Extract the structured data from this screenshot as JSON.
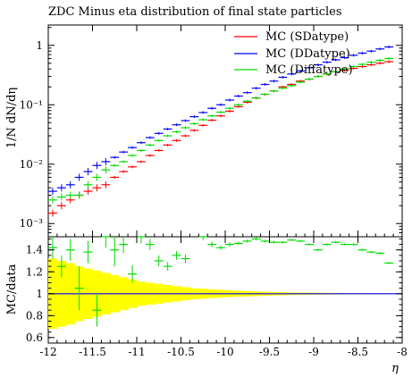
{
  "chart_data": {
    "type": "line",
    "title": "ZDC Minus eta distribution of final state particles",
    "xlabel": "η",
    "ylabel": "1/N dN/dη",
    "xlim": [
      -12,
      -8
    ],
    "x_ticks": [
      -12,
      -11.5,
      -11,
      -10.5,
      -10,
      -9.5,
      -9,
      -8.5,
      -8
    ],
    "x_tick_labels": [
      "-12",
      "-11.5",
      "-11",
      "-10.5",
      "-10",
      "-9.5",
      "-9",
      "-8.5",
      "-8"
    ],
    "yscale": "log",
    "ylim": [
      0.0006,
      2.2
    ],
    "y_ticks": [
      0.001,
      0.01,
      0.1,
      1
    ],
    "y_tick_labels": [
      "10⁻³",
      "10⁻²",
      "10⁻¹",
      "1"
    ],
    "legend_position": "top-right",
    "series": [
      {
        "name": "MC (SDatype)",
        "color": "#ff0000",
        "x": [
          -11.95,
          -11.85,
          -11.75,
          -11.65,
          -11.55,
          -11.45,
          -11.35,
          -11.25,
          -11.15,
          -11.05,
          -10.95,
          -10.85,
          -10.75,
          -10.65,
          -10.55,
          -10.45,
          -10.35,
          -10.25,
          -10.15,
          -10.05,
          -9.95,
          -9.85,
          -9.75,
          -9.65,
          -9.55,
          -9.45,
          -9.35,
          -9.25,
          -9.15,
          -9.05,
          -8.95,
          -8.85,
          -8.75,
          -8.65,
          -8.55,
          -8.45,
          -8.35,
          -8.25,
          -8.15
        ],
        "values": [
          0.0015,
          0.002,
          0.0025,
          0.003,
          0.0035,
          0.004,
          0.0045,
          0.006,
          0.0075,
          0.009,
          0.011,
          0.014,
          0.017,
          0.021,
          0.025,
          0.03,
          0.037,
          0.045,
          0.055,
          0.065,
          0.078,
          0.093,
          0.11,
          0.13,
          0.15,
          0.17,
          0.2,
          0.22,
          0.25,
          0.27,
          0.3,
          0.33,
          0.36,
          0.38,
          0.41,
          0.44,
          0.47,
          0.5,
          0.53
        ]
      },
      {
        "name": "MC (DDatype)",
        "color": "#0000ff",
        "x": [
          -11.95,
          -11.85,
          -11.75,
          -11.65,
          -11.55,
          -11.45,
          -11.35,
          -11.25,
          -11.15,
          -11.05,
          -10.95,
          -10.85,
          -10.75,
          -10.65,
          -10.55,
          -10.45,
          -10.35,
          -10.25,
          -10.15,
          -10.05,
          -9.95,
          -9.85,
          -9.75,
          -9.65,
          -9.55,
          -9.45,
          -9.35,
          -9.25,
          -9.15,
          -9.05,
          -8.95,
          -8.85,
          -8.75,
          -8.65,
          -8.55,
          -8.45,
          -8.35,
          -8.25,
          -8.15
        ],
        "values": [
          0.0035,
          0.004,
          0.0045,
          0.006,
          0.0075,
          0.0095,
          0.011,
          0.013,
          0.016,
          0.019,
          0.023,
          0.028,
          0.033,
          0.039,
          0.046,
          0.054,
          0.063,
          0.074,
          0.087,
          0.1,
          0.12,
          0.14,
          0.16,
          0.19,
          0.22,
          0.25,
          0.29,
          0.33,
          0.37,
          0.42,
          0.47,
          0.52,
          0.57,
          0.62,
          0.68,
          0.74,
          0.8,
          0.87,
          0.94
        ]
      },
      {
        "name": "MC (Diffatype)",
        "color": "#00dd00",
        "x": [
          -11.95,
          -11.85,
          -11.75,
          -11.65,
          -11.55,
          -11.45,
          -11.35,
          -11.25,
          -11.15,
          -11.05,
          -10.95,
          -10.85,
          -10.75,
          -10.65,
          -10.55,
          -10.45,
          -10.35,
          -10.25,
          -10.15,
          -10.05,
          -9.95,
          -9.85,
          -9.75,
          -9.65,
          -9.55,
          -9.45,
          -9.35,
          -9.25,
          -9.15,
          -9.05,
          -8.95,
          -8.85,
          -8.75,
          -8.65,
          -8.55,
          -8.45,
          -8.35,
          -8.25,
          -8.15
        ],
        "values": [
          0.0025,
          0.0028,
          0.003,
          0.003,
          0.0045,
          0.006,
          0.008,
          0.0095,
          0.011,
          0.014,
          0.017,
          0.021,
          0.025,
          0.03,
          0.035,
          0.041,
          0.048,
          0.056,
          0.065,
          0.075,
          0.087,
          0.1,
          0.115,
          0.13,
          0.15,
          0.17,
          0.19,
          0.21,
          0.24,
          0.27,
          0.3,
          0.33,
          0.36,
          0.4,
          0.44,
          0.48,
          0.52,
          0.56,
          0.6
        ]
      }
    ],
    "ratio_panel": {
      "ylabel": "MC/data",
      "ylim": [
        0.55,
        1.52
      ],
      "y_ticks": [
        0.6,
        0.8,
        1,
        1.2,
        1.4
      ],
      "y_tick_labels": [
        "0.6",
        "0.8",
        "1",
        "1.2",
        "1.4"
      ],
      "band_color": "#ffff00",
      "reference_line_color": "#0000ff",
      "band_halfwidth": [
        0.32,
        0.3,
        0.28,
        0.25,
        0.23,
        0.21,
        0.19,
        0.17,
        0.15,
        0.13,
        0.11,
        0.1,
        0.09,
        0.08,
        0.07,
        0.06,
        0.05,
        0.045,
        0.04,
        0.035,
        0.03,
        0.027,
        0.024,
        0.021,
        0.018,
        0.016,
        0.014,
        0.012,
        0.011,
        0.01,
        0.009,
        0.008,
        0.007,
        0.006,
        0.006,
        0.005,
        0.005,
        0.004,
        0.004
      ],
      "series": [
        {
          "name": "MC (Diffatype)",
          "color": "#00dd00",
          "x": [
            -11.95,
            -11.85,
            -11.75,
            -11.65,
            -11.55,
            -11.45,
            -11.35,
            -11.25,
            -11.15,
            -11.05,
            -10.95,
            -10.85,
            -10.75,
            -10.65,
            -10.55,
            -10.45,
            -10.35,
            -10.25,
            -10.15,
            -10.05,
            -9.95,
            -9.85,
            -9.75,
            -9.65,
            -9.55,
            -9.45,
            -9.35,
            -9.25,
            -9.15,
            -9.05,
            -8.95,
            -8.85,
            -8.75,
            -8.65,
            -8.55,
            -8.45,
            -8.35,
            -8.25,
            -8.15
          ],
          "values": [
            1.42,
            1.25,
            1.4,
            1.05,
            1.38,
            0.85,
            1.52,
            1.4,
            1.45,
            1.18,
            1.52,
            1.45,
            1.3,
            1.25,
            1.35,
            1.32,
            1.55,
            1.52,
            1.45,
            1.42,
            1.45,
            1.46,
            1.48,
            1.5,
            1.48,
            1.47,
            1.47,
            1.49,
            1.48,
            1.45,
            1.4,
            1.45,
            1.47,
            1.45,
            1.45,
            1.4,
            1.38,
            1.37,
            1.28
          ],
          "errors": [
            0.1,
            0.1,
            0.1,
            0.2,
            0.1,
            0.15,
            0.1,
            0.15,
            0.08,
            0.08,
            0.06,
            0.05,
            0.05,
            0.04,
            0.04,
            0.04,
            0.03,
            0.03,
            0.025,
            0.02,
            0.02,
            0.015,
            0.015,
            0.015,
            0.012,
            0.012,
            0.012,
            0.01,
            0.01,
            0.01,
            0.01,
            0.01,
            0.01,
            0.01,
            0.01,
            0.01,
            0.01,
            0.01,
            0.01
          ]
        }
      ]
    }
  }
}
